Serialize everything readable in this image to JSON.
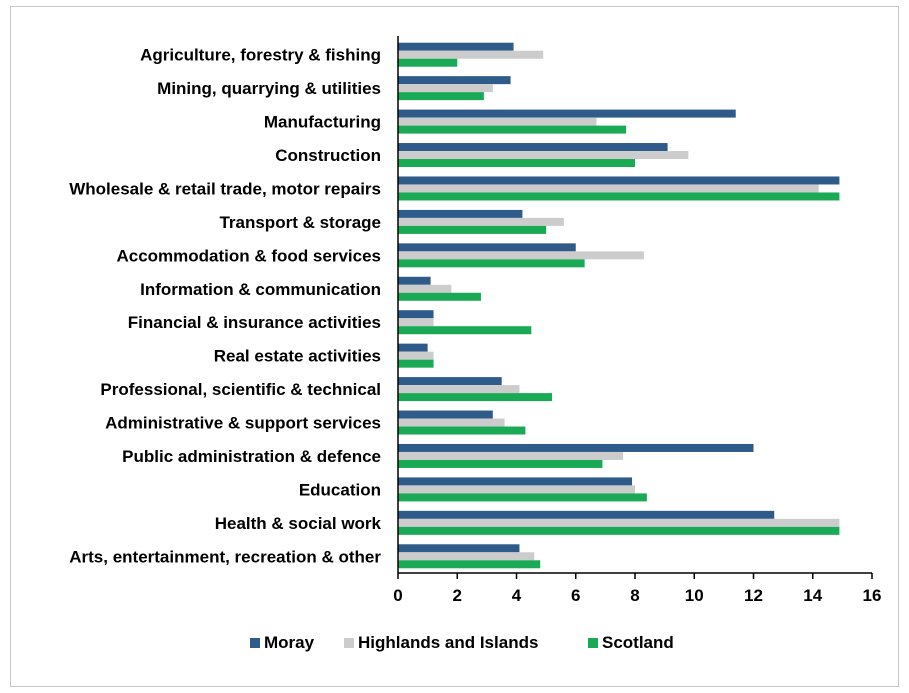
{
  "chart_data": {
    "type": "bar",
    "orientation": "horizontal",
    "categories": [
      "Agriculture, forestry & fishing",
      "Mining, quarrying & utilities",
      "Manufacturing",
      "Construction",
      "Wholesale & retail trade, motor repairs",
      "Transport & storage",
      "Accommodation & food services",
      "Information & communication",
      "Financial & insurance activities",
      "Real estate activities",
      "Professional, scientific & technical",
      "Administrative & support services",
      "Public administration & defence",
      "Education",
      "Health & social work",
      "Arts, entertainment, recreation & other"
    ],
    "series": [
      {
        "name": "Moray",
        "color": "#2e5b8a",
        "values": [
          3.9,
          3.8,
          11.4,
          9.1,
          14.9,
          4.2,
          6.0,
          1.1,
          1.2,
          1.0,
          3.5,
          3.2,
          12.0,
          7.9,
          12.7,
          4.1
        ]
      },
      {
        "name": "Highlands and Islands",
        "color": "#cccccc",
        "values": [
          4.9,
          3.2,
          6.7,
          9.8,
          14.2,
          5.6,
          8.3,
          1.8,
          1.2,
          1.2,
          4.1,
          3.6,
          7.6,
          8.0,
          14.9,
          4.6
        ]
      },
      {
        "name": "Scotland",
        "color": "#1aaa55",
        "values": [
          2.0,
          2.9,
          7.7,
          8.0,
          14.9,
          5.0,
          6.3,
          2.8,
          4.5,
          1.2,
          5.2,
          4.3,
          6.9,
          8.4,
          14.9,
          4.8
        ]
      }
    ],
    "xlim": [
      0,
      16
    ],
    "xticks": [
      "0",
      "2",
      "4",
      "6",
      "8",
      "10",
      "12",
      "14",
      "16"
    ],
    "grid": false,
    "legend_position": "bottom"
  }
}
